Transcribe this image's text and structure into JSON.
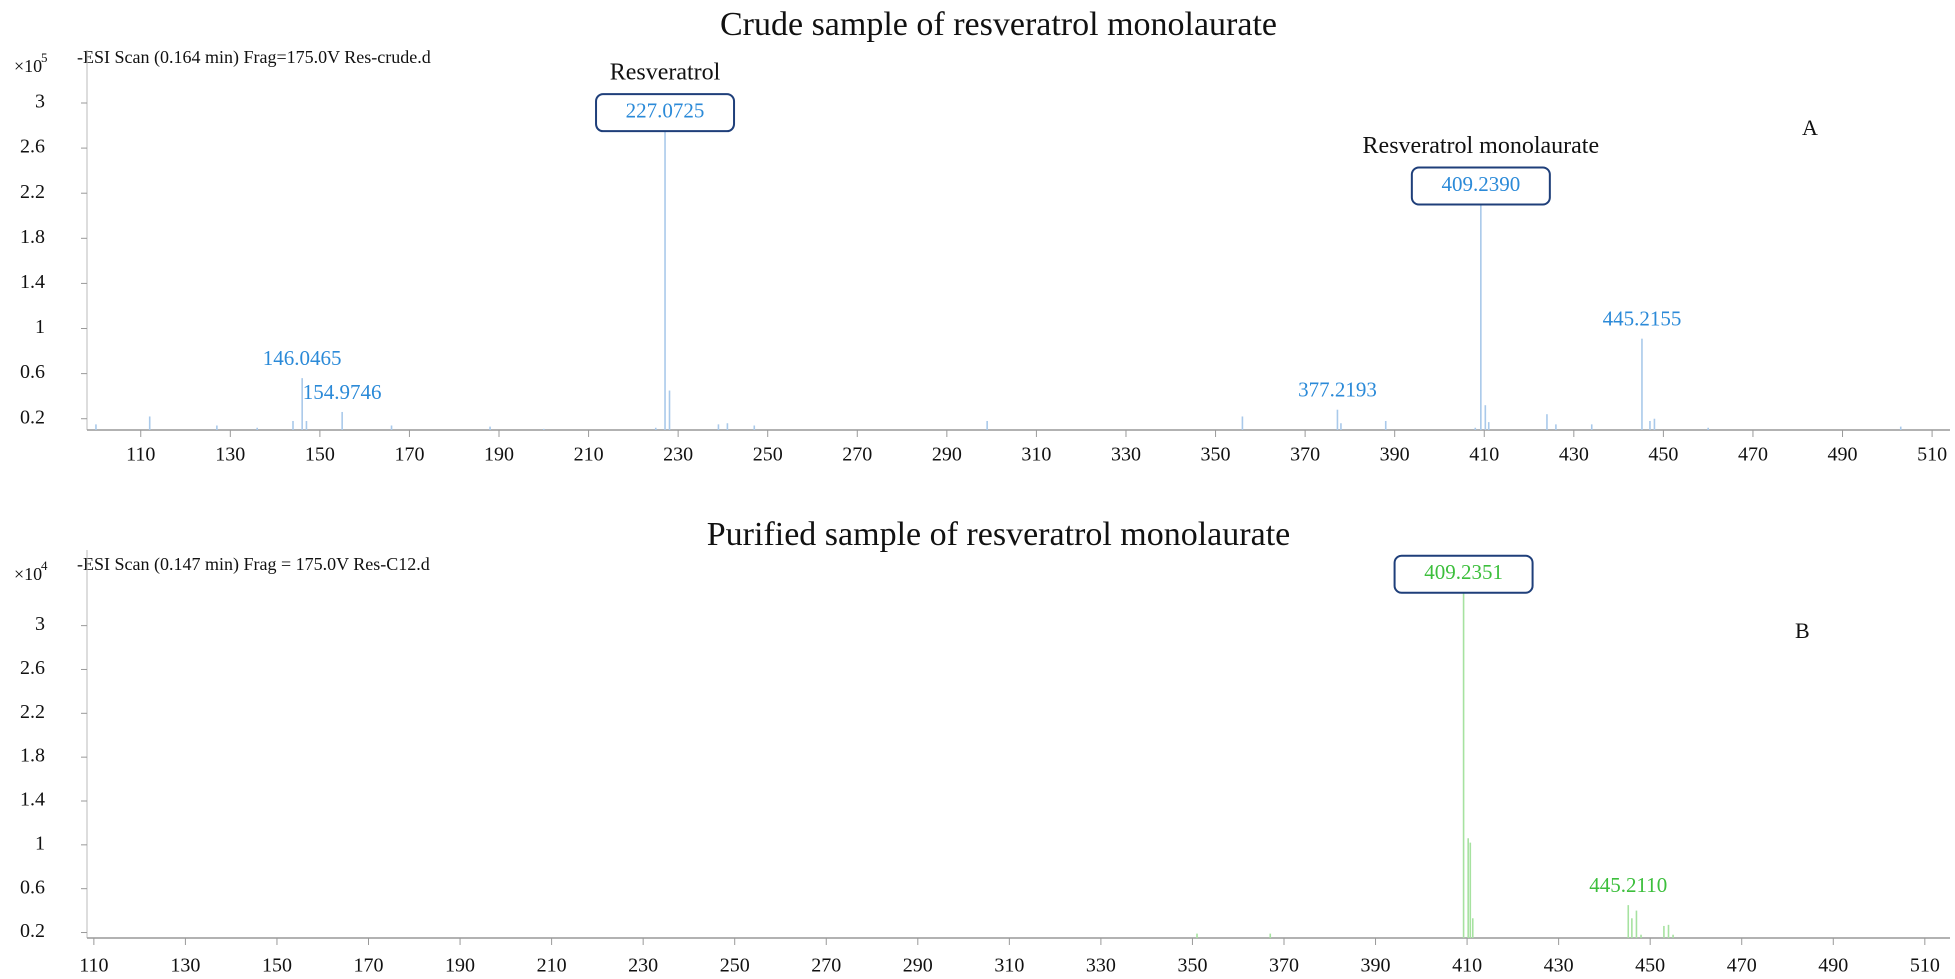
{
  "chart_data": [
    {
      "type": "bar",
      "title": "Crude sample of resveratrol monolaurate",
      "subtitle": "-ESI Scan (0.164 min) Frag=175.0V Res-crude.d",
      "y_unit": {
        "base": "×10",
        "exponent": "5"
      },
      "panel_label": "A",
      "color": "#a9c9ea",
      "label_color": "#2b8ad8",
      "x": [
        100,
        112,
        127,
        136,
        144,
        146.0465,
        147,
        154.9746,
        166,
        188,
        200,
        225,
        227.0725,
        228.07,
        239,
        241,
        247,
        299,
        356,
        377.2193,
        378,
        388,
        408,
        409.239,
        410.24,
        411,
        424,
        426,
        434,
        445.2155,
        447,
        448,
        460,
        503
      ],
      "values": [
        0.15,
        0.22,
        0.14,
        0.12,
        0.18,
        0.56,
        0.18,
        0.26,
        0.14,
        0.13,
        0.11,
        0.12,
        2.75,
        0.45,
        0.15,
        0.16,
        0.14,
        0.18,
        0.22,
        0.28,
        0.16,
        0.18,
        0.12,
        2.1,
        0.32,
        0.17,
        0.24,
        0.15,
        0.15,
        0.91,
        0.18,
        0.2,
        0.12,
        0.13
      ],
      "x_labels": [
        null,
        null,
        null,
        null,
        null,
        "146.0465",
        null,
        "154.9746",
        null,
        null,
        null,
        null,
        "227.0725",
        null,
        null,
        null,
        null,
        null,
        null,
        "377.2193",
        null,
        null,
        null,
        "409.2390",
        null,
        null,
        null,
        null,
        null,
        "445.2155",
        null,
        null,
        null,
        null
      ],
      "boxed": [
        false,
        false,
        false,
        false,
        false,
        false,
        false,
        false,
        false,
        false,
        false,
        false,
        true,
        false,
        false,
        false,
        false,
        false,
        false,
        false,
        false,
        false,
        false,
        true,
        false,
        false,
        false,
        false,
        false,
        false,
        false,
        false,
        false,
        false
      ],
      "annotations": [
        {
          "text": "Resveratrol",
          "x": 227.0725
        },
        {
          "text": "Resveratrol monolaurate",
          "x": 409.239
        }
      ],
      "xlim": [
        98,
        514
      ],
      "xticks": [
        110,
        130,
        150,
        170,
        190,
        210,
        230,
        250,
        270,
        290,
        310,
        330,
        350,
        370,
        390,
        410,
        430,
        450,
        470,
        490,
        510
      ],
      "ylim": [
        0.1,
        3.47
      ],
      "yticks": [
        0.2,
        0.6,
        1,
        1.4,
        1.8,
        2.2,
        2.6,
        3
      ]
    },
    {
      "type": "bar",
      "title": "Purified sample of resveratrol monolaurate",
      "subtitle": "-ESI Scan (0.147 min) Frag = 175.0V Res-C12.d",
      "y_unit": {
        "base": "×10",
        "exponent": "4"
      },
      "panel_label": "B",
      "color": "#a6e2a0",
      "label_color": "#3cbf3c",
      "x": [
        351,
        367,
        409.2351,
        410.24,
        410.7,
        411.24,
        445.211,
        446,
        447,
        448,
        453,
        454,
        455
      ],
      "values": [
        0.19,
        0.19,
        3.3,
        1.06,
        1.02,
        0.33,
        0.45,
        0.33,
        0.4,
        0.18,
        0.26,
        0.27,
        0.18
      ],
      "x_labels": [
        null,
        null,
        "409.2351",
        null,
        null,
        null,
        "445.2110",
        null,
        null,
        null,
        null,
        null,
        null
      ],
      "boxed": [
        false,
        false,
        true,
        false,
        false,
        false,
        false,
        false,
        false,
        false,
        false,
        false,
        false
      ],
      "annotations": [],
      "xlim": [
        108.5,
        515.5
      ],
      "xticks": [
        110,
        130,
        150,
        170,
        190,
        210,
        230,
        250,
        270,
        290,
        310,
        330,
        350,
        370,
        390,
        410,
        430,
        450,
        470,
        490,
        510
      ],
      "ylim": [
        0.15,
        3.69
      ],
      "yticks": [
        0.2,
        0.6,
        1,
        1.4,
        1.8,
        2.2,
        2.6,
        3
      ]
    }
  ]
}
